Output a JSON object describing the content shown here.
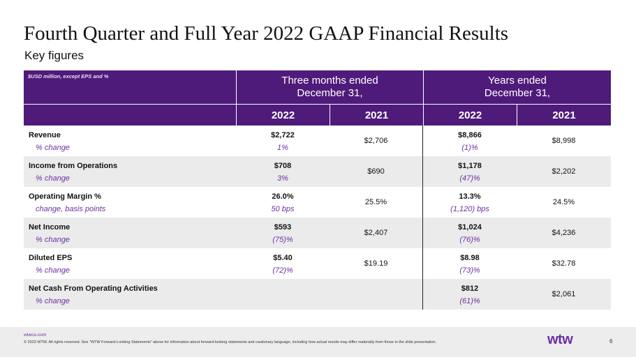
{
  "title": "Fourth Quarter and Full Year 2022 GAAP Financial Results",
  "subtitle": "Key figures",
  "table": {
    "note": "$USD million, except EPS and %",
    "group_quarter_line1": "Three months ended",
    "group_quarter_line2": "December 31,",
    "group_year_line1": "Years ended",
    "group_year_line2": "December 31,",
    "years": [
      "2022",
      "2021",
      "2022",
      "2021"
    ],
    "rows": [
      {
        "label": "Revenue",
        "sublabel": "% change",
        "q2022": "$2,722",
        "q2022_change": "1%",
        "q2021": "$2,706",
        "y2022": "$8,866",
        "y2022_change": "(1)%",
        "y2021": "$8,998"
      },
      {
        "label": "Income from Operations",
        "sublabel": "% change",
        "q2022": "$708",
        "q2022_change": "3%",
        "q2021": "$690",
        "y2022": "$1,178",
        "y2022_change": "(47)%",
        "y2021": "$2,202"
      },
      {
        "label": "Operating Margin %",
        "sublabel": "change, basis points",
        "q2022": "26.0%",
        "q2022_change": "50 bps",
        "q2021": "25.5%",
        "y2022": "13.3%",
        "y2022_change": "(1,120) bps",
        "y2021": "24.5%"
      },
      {
        "label": "Net Income",
        "sublabel": "% change",
        "q2022": "$593",
        "q2022_change": "(75)%",
        "q2021": "$2,407",
        "y2022": "$1,024",
        "y2022_change": "(76)%",
        "y2021": "$4,236"
      },
      {
        "label": "Diluted EPS",
        "sublabel": "% change",
        "q2022": "$5.40",
        "q2022_change": "(72)%",
        "q2021": "$19.19",
        "y2022": "$8.98",
        "y2022_change": "(73)%",
        "y2021": "$32.78"
      },
      {
        "label": "Net Cash From Operating Activities",
        "sublabel": "% change",
        "q2022": "",
        "q2022_change": "",
        "q2021": "",
        "y2022": "$812",
        "y2022_change": "(61)%",
        "y2021": "$2,061"
      }
    ]
  },
  "footer": {
    "site": "wtwco.com",
    "legal": "© 2023 WTW. All rights reserved. See \"WTW Forward-Looking Statements\" above for information about forward-looking statements and cautionary language, including how actual results may differ materially from those in the slide presentation.",
    "logo": "wtw",
    "page": "6"
  },
  "colors": {
    "header_purple": "#4f1b7a",
    "accent_purple": "#6b2fa0",
    "row_shade": "#ebebeb"
  }
}
